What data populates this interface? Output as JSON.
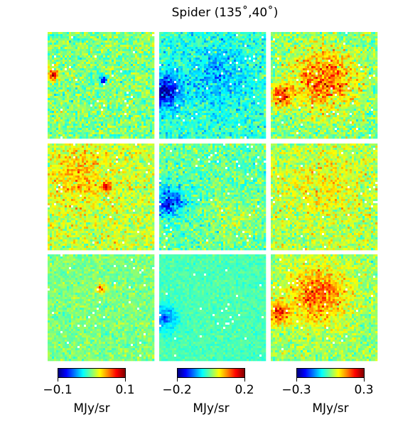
{
  "chart_data": {
    "type": "heatmap",
    "title": "Spider (135˚,40˚)",
    "grid": {
      "rows": 3,
      "cols": 3
    },
    "colormap": "jet",
    "colorbars": [
      {
        "min": -0.1,
        "max": 0.1,
        "tick_labels": [
          "−0.1",
          "0.1"
        ],
        "unit": "MJy/sr"
      },
      {
        "min": -0.2,
        "max": 0.2,
        "tick_labels": [
          "−0.2",
          "0.2"
        ],
        "unit": "MJy/sr"
      },
      {
        "min": -0.3,
        "max": 0.3,
        "tick_labels": [
          "−0.3",
          "0.3"
        ],
        "unit": "MJy/sr"
      }
    ],
    "panels": [
      {
        "row": 0,
        "col": 0,
        "mean": 0.5,
        "noise": 0.13,
        "features": [
          {
            "cx": 0.05,
            "cy": 0.4,
            "r": 0.05,
            "amp": 0.4
          },
          {
            "cx": 0.52,
            "cy": 0.45,
            "r": 0.04,
            "amp": -0.4
          }
        ]
      },
      {
        "row": 0,
        "col": 1,
        "mean": 0.42,
        "noise": 0.12,
        "features": [
          {
            "cx": 0.05,
            "cy": 0.55,
            "r": 0.15,
            "amp": -0.35
          },
          {
            "cx": 0.55,
            "cy": 0.4,
            "r": 0.25,
            "amp": -0.12
          }
        ]
      },
      {
        "row": 0,
        "col": 2,
        "mean": 0.5,
        "noise": 0.14,
        "features": [
          {
            "cx": 0.5,
            "cy": 0.45,
            "r": 0.3,
            "amp": 0.28
          },
          {
            "cx": 0.1,
            "cy": 0.6,
            "r": 0.1,
            "amp": 0.3
          }
        ]
      },
      {
        "row": 1,
        "col": 0,
        "mean": 0.57,
        "noise": 0.13,
        "features": [
          {
            "cx": 0.3,
            "cy": 0.3,
            "r": 0.25,
            "amp": 0.12
          },
          {
            "cx": 0.55,
            "cy": 0.4,
            "r": 0.04,
            "amp": 0.3
          }
        ]
      },
      {
        "row": 1,
        "col": 1,
        "mean": 0.47,
        "noise": 0.12,
        "features": [
          {
            "cx": 0.1,
            "cy": 0.55,
            "r": 0.14,
            "amp": -0.3
          },
          {
            "cx": 0.7,
            "cy": 0.7,
            "r": 0.2,
            "amp": 0.08
          }
        ]
      },
      {
        "row": 1,
        "col": 2,
        "mean": 0.55,
        "noise": 0.13,
        "features": [
          {
            "cx": 0.5,
            "cy": 0.4,
            "r": 0.3,
            "amp": 0.08
          }
        ]
      },
      {
        "row": 2,
        "col": 0,
        "mean": 0.5,
        "noise": 0.08,
        "features": [
          {
            "cx": 0.5,
            "cy": 0.32,
            "r": 0.04,
            "amp": 0.35
          }
        ]
      },
      {
        "row": 2,
        "col": 1,
        "mean": 0.45,
        "noise": 0.05,
        "features": [
          {
            "cx": 0.05,
            "cy": 0.6,
            "r": 0.12,
            "amp": -0.2
          }
        ]
      },
      {
        "row": 2,
        "col": 2,
        "mean": 0.52,
        "noise": 0.11,
        "features": [
          {
            "cx": 0.45,
            "cy": 0.38,
            "r": 0.28,
            "amp": 0.25
          },
          {
            "cx": 0.08,
            "cy": 0.55,
            "r": 0.1,
            "amp": 0.3
          }
        ]
      }
    ]
  }
}
